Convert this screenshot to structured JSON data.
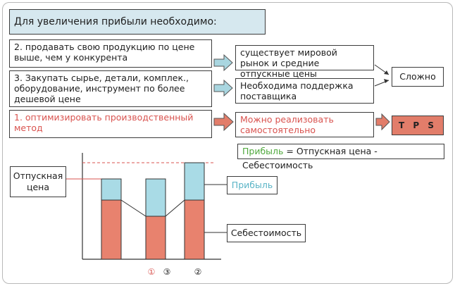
{
  "title": "Для увеличения прибыли необходимо:",
  "options": [
    {
      "text": "2. продавать свою продукцию по цене выше, чем у конкурента"
    },
    {
      "text": "3. Закупать сырье, детали, комплек., оборудование, инструмент по более дешевой цене"
    },
    {
      "text": "1. оптимизировать производственный метод"
    }
  ],
  "outcomes": [
    {
      "text": "существует мировой рынок и средние отпускные цены"
    },
    {
      "text": "Необходима поддержка поставщика"
    },
    {
      "text": "Можно реализовать самостоятельно"
    }
  ],
  "difficult": "Сложно",
  "tps": "T P S",
  "formula": {
    "profit": "Прибыль",
    "rest": " = Отпускная цена - Себестоимость"
  },
  "chart": {
    "price_label": "Отпускная цена",
    "profit_label": "Прибыль",
    "cost_label": "Себестоимость",
    "bar_labels": [
      "①",
      "③",
      "②"
    ]
  },
  "colors": {
    "profit": "#a9dbe6",
    "cost": "#e8826e",
    "accent_red": "#d9534f",
    "arrow_blue": "#a9d6e0",
    "arrow_red": "#e27d6a",
    "title_bg": "#d6e8ef",
    "green": "#4fa83c"
  }
}
